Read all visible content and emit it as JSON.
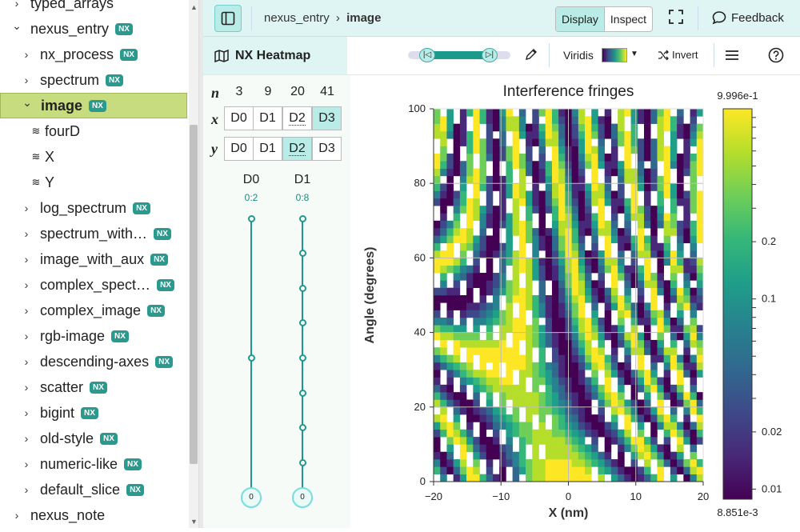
{
  "sidebar": {
    "items": [
      {
        "label": "typed_arrays",
        "level": 0,
        "type": "group",
        "chevron": "right",
        "nx": false
      },
      {
        "label": "nexus_entry",
        "level": 0,
        "type": "group",
        "chevron": "down",
        "nx": true
      },
      {
        "label": "nx_process",
        "level": 1,
        "type": "group",
        "chevron": "right",
        "nx": true
      },
      {
        "label": "spectrum",
        "level": 1,
        "type": "group",
        "chevron": "right",
        "nx": true
      },
      {
        "label": "image",
        "level": 1,
        "type": "group",
        "chevron": "down",
        "nx": true,
        "selected": true
      },
      {
        "label": "fourD",
        "level": 2,
        "type": "dataset",
        "nx": false
      },
      {
        "label": "X",
        "level": 2,
        "type": "dataset",
        "nx": false
      },
      {
        "label": "Y",
        "level": 2,
        "type": "dataset",
        "nx": false
      },
      {
        "label": "log_spectrum",
        "level": 1,
        "type": "group",
        "chevron": "right",
        "nx": true
      },
      {
        "label": "spectrum_with…",
        "level": 1,
        "type": "group",
        "chevron": "right",
        "nx": true
      },
      {
        "label": "image_with_aux",
        "level": 1,
        "type": "group",
        "chevron": "right",
        "nx": true
      },
      {
        "label": "complex_spect…",
        "level": 1,
        "type": "group",
        "chevron": "right",
        "nx": true
      },
      {
        "label": "complex_image",
        "level": 1,
        "type": "group",
        "chevron": "right",
        "nx": true
      },
      {
        "label": "rgb-image",
        "level": 1,
        "type": "group",
        "chevron": "right",
        "nx": true
      },
      {
        "label": "descending-axes",
        "level": 1,
        "type": "group",
        "chevron": "right",
        "nx": true
      },
      {
        "label": "scatter",
        "level": 1,
        "type": "group",
        "chevron": "right",
        "nx": true
      },
      {
        "label": "bigint",
        "level": 1,
        "type": "group",
        "chevron": "right",
        "nx": true
      },
      {
        "label": "old-style",
        "level": 1,
        "type": "group",
        "chevron": "right",
        "nx": true
      },
      {
        "label": "numeric-like",
        "level": 1,
        "type": "group",
        "chevron": "right",
        "nx": true
      },
      {
        "label": "default_slice",
        "level": 1,
        "type": "group",
        "chevron": "right",
        "nx": true
      },
      {
        "label": "nexus_note",
        "level": 0,
        "type": "group",
        "chevron": "right",
        "nx": false
      }
    ],
    "nx_badge": "NX"
  },
  "topbar": {
    "breadcrumb_parent": "nexus_entry",
    "breadcrumb_sep": "›",
    "breadcrumb_current": "image",
    "display_label": "Display",
    "inspect_label": "Inspect",
    "feedback_label": "Feedback"
  },
  "toolbar": {
    "vis_title": "NX Heatmap",
    "colormap": "Viridis",
    "invert_label": "Invert",
    "slider_level": [
      0.18,
      0.8
    ]
  },
  "dims": {
    "n_label": "n",
    "x_label": "x",
    "y_label": "y",
    "sizes": [
      "3",
      "9",
      "20",
      "41"
    ],
    "x_buttons": [
      "D0",
      "D1",
      "D2",
      "D3"
    ],
    "x_selected": 3,
    "y_buttons": [
      "D0",
      "D1",
      "D2",
      "D3"
    ],
    "y_selected": 2,
    "sliders": [
      {
        "name": "D0",
        "range": "0:2",
        "value": "0",
        "steps": 3
      },
      {
        "name": "D1",
        "range": "0:8",
        "value": "0",
        "steps": 9
      }
    ]
  },
  "chart_data": {
    "type": "heatmap",
    "title": "Interference fringes",
    "xlabel": "X (nm)",
    "ylabel": "Angle (degrees)",
    "xlim": [
      -20,
      20
    ],
    "ylim": [
      0,
      100
    ],
    "xticks": [
      "−20",
      "−10",
      "0",
      "10",
      "20"
    ],
    "yticks": [
      "0",
      "20",
      "40",
      "60",
      "80",
      "100"
    ],
    "colormap": "Viridis",
    "scale": "log",
    "colorbar_max": "9.996e-1",
    "colorbar_min": "8.851e-3",
    "colorbar_ticks": [
      "0.2",
      "0.1",
      "0.02",
      "0.01"
    ],
    "grid": true
  }
}
